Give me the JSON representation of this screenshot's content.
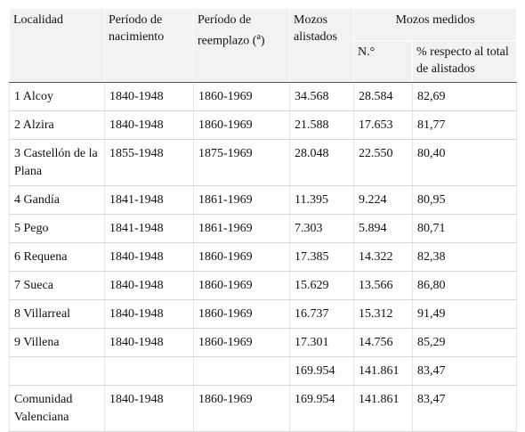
{
  "table": {
    "header": {
      "localidad": "Localidad",
      "nacimiento": "Período de nacimiento",
      "reemplazo": {
        "text": "Período de reemplazo (",
        "sup": "a",
        "close": ")"
      },
      "alistados": "Mozos alistados",
      "medidos": "Mozos medidos",
      "numero": "N.°",
      "porcentaje": "% respecto al total de alistados"
    },
    "rows": [
      [
        "1 Alcoy",
        "1840-1948",
        "1860-1969",
        "34.568",
        "28.584",
        "82,69"
      ],
      [
        "2 Alzira",
        "1840-1948",
        "1860-1969",
        "21.588",
        "17.653",
        "81,77"
      ],
      [
        "3 Castellón de la Plana",
        "1855-1948",
        "1875-1969",
        "28.048",
        "22.550",
        "80,40"
      ],
      [
        "4 Gandía",
        "1841-1948",
        "1861-1969",
        "11.395",
        "9.224",
        "80,95"
      ],
      [
        "5 Pego",
        "1841-1948",
        "1861-1969",
        "7.303",
        "5.894",
        "80,71"
      ],
      [
        "6 Requena",
        "1840-1948",
        "1860-1969",
        "17.385",
        "14.322",
        "82,38"
      ],
      [
        "7 Sueca",
        "1840-1948",
        "1860-1969",
        "15.629",
        "13.566",
        "86,80"
      ],
      [
        "8 Villarreal",
        "1840-1948",
        "1860-1969",
        "16.737",
        "15.312",
        "91,49"
      ],
      [
        "9 Villena",
        "1840-1948",
        "1860-1969",
        "17.301",
        "14.756",
        "85,29"
      ],
      [
        null,
        null,
        null,
        "169.954",
        "141.861",
        "83,47"
      ],
      [
        "Comunidad Valenciana",
        "1840-1948",
        "1860-1969",
        "169.954",
        "141.861",
        "83,47"
      ]
    ]
  }
}
